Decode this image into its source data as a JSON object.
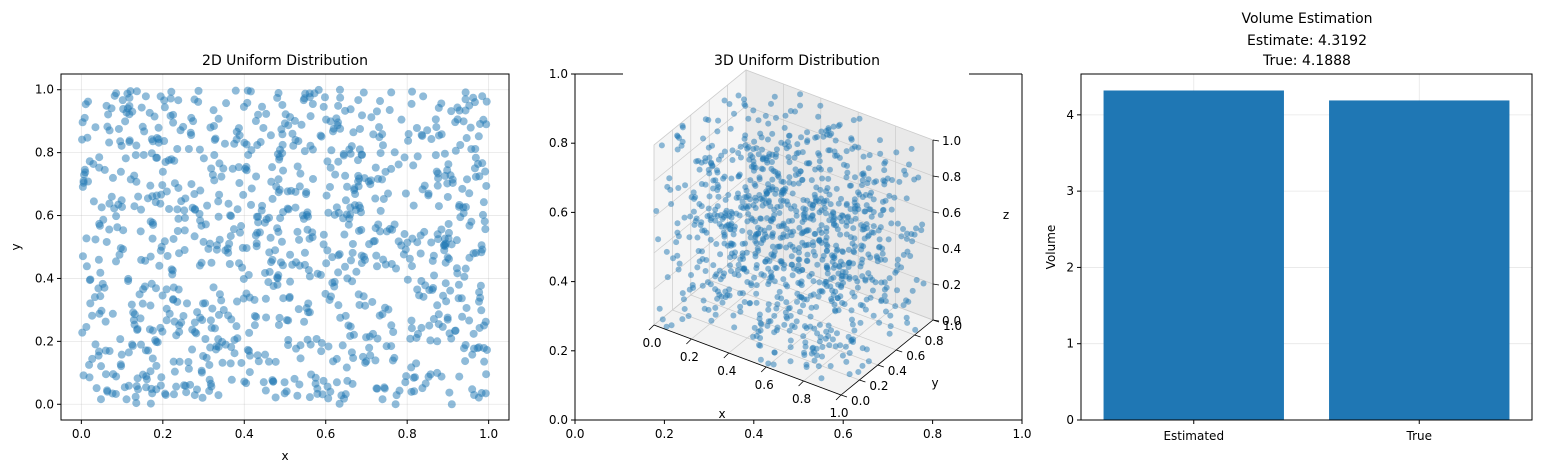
{
  "style": {
    "point_color": "#1f77b4",
    "bar_color": "#1f77b4",
    "grid_color": "#b0b0b0"
  },
  "chart_data": [
    {
      "type": "scatter",
      "title": "2D Uniform Distribution",
      "xlabel": "x",
      "ylabel": "y",
      "xlim": [
        -0.05,
        1.05
      ],
      "ylim": [
        -0.05,
        1.05
      ],
      "xticks": [
        "0.0",
        "0.2",
        "0.4",
        "0.6",
        "0.8",
        "1.0"
      ],
      "yticks": [
        "0.0",
        "0.2",
        "0.4",
        "0.6",
        "0.8",
        "1.0"
      ],
      "grid": true,
      "n_points": 1000,
      "distribution": "uniform on [0,1]^2",
      "alpha": 0.5
    },
    {
      "type": "scatter3d",
      "title": "3D Uniform Distribution",
      "xlabel": "x",
      "ylabel": "y",
      "zlabel": "z",
      "xticks": [
        "0.0",
        "0.2",
        "0.4",
        "0.6",
        "0.8",
        "1.0"
      ],
      "yticks": [
        "0.0",
        "0.2",
        "0.4",
        "0.6",
        "0.8",
        "1.0"
      ],
      "zticks": [
        "0.0",
        "0.2",
        "0.4",
        "0.6",
        "0.8",
        "1.0"
      ],
      "frame_xticks": [
        "0.0",
        "0.2",
        "0.4",
        "0.6",
        "0.8",
        "1.0"
      ],
      "frame_yticks": [
        "0.0",
        "0.2",
        "0.4",
        "0.6",
        "0.8",
        "1.0"
      ],
      "n_points": 1000,
      "distribution": "uniform on [0,1]^3",
      "alpha": 0.5
    },
    {
      "type": "bar",
      "title_lines": [
        "Volume Estimation",
        "Estimate: 4.3192",
        "True: 4.1888"
      ],
      "categories": [
        "Estimated",
        "True"
      ],
      "values": [
        4.3192,
        4.1888
      ],
      "ylabel": "Volume",
      "ylim": [
        0,
        4.5354
      ],
      "yticks": [
        "0",
        "1",
        "2",
        "3",
        "4"
      ],
      "grid": true
    }
  ]
}
